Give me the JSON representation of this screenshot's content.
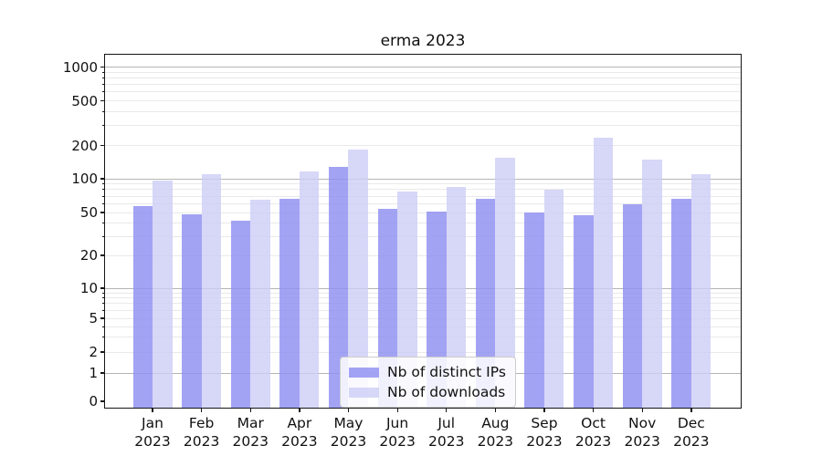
{
  "title": "erma 2023",
  "chart_data": {
    "type": "bar",
    "title": "erma 2023",
    "categories": [
      "Jan 2023",
      "Feb 2023",
      "Mar 2023",
      "Apr 2023",
      "May 2023",
      "Jun 2023",
      "Jul 2023",
      "Aug 2023",
      "Sep 2023",
      "Oct 2023",
      "Nov 2023",
      "Dec 2023"
    ],
    "series": [
      {
        "name": "Nb of distinct IPs",
        "color": "rgba(143,143,241,0.82)",
        "values": [
          57,
          48,
          42,
          66,
          127,
          54,
          51,
          66,
          50,
          47,
          59,
          66
        ]
      },
      {
        "name": "Nb of downloads",
        "color": "rgba(205,205,246,0.80)",
        "values": [
          97,
          109,
          65,
          117,
          184,
          77,
          84,
          154,
          80,
          235,
          149,
          109
        ]
      }
    ],
    "yscale": "symlog",
    "yticks": [
      0,
      1,
      2,
      5,
      10,
      20,
      50,
      100,
      200,
      500,
      1000
    ],
    "ylim": [
      0,
      1290
    ],
    "grid": "horizontal",
    "legend_position": "lower center inside",
    "xlabel": "",
    "ylabel": ""
  }
}
